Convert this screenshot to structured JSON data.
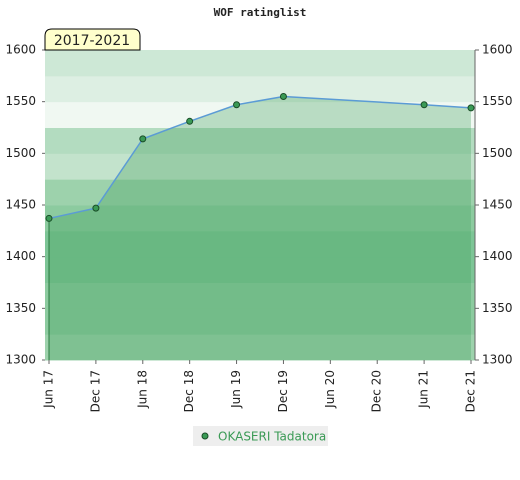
{
  "chart_data": {
    "type": "area",
    "title": "WOF ratinglist",
    "annotation": "2017-2021",
    "xlim": [
      0,
      9
    ],
    "xticks": [
      {
        "value": 0,
        "label": "Jun 17"
      },
      {
        "value": 1,
        "label": "Dec 17"
      },
      {
        "value": 2,
        "label": "Jun 18"
      },
      {
        "value": 3,
        "label": "Dec 18"
      },
      {
        "value": 4,
        "label": "Jun 19"
      },
      {
        "value": 5,
        "label": "Dec 19"
      },
      {
        "value": 6,
        "label": "Jun 20"
      },
      {
        "value": 7,
        "label": "Dec 20"
      },
      {
        "value": 8,
        "label": "Jun 21"
      },
      {
        "value": 9,
        "label": "Dec 21"
      }
    ],
    "ylim": [
      1300,
      1600
    ],
    "yticks": [
      1300,
      1350,
      1400,
      1450,
      1500,
      1550,
      1600
    ],
    "y2lim": [
      1300,
      1600
    ],
    "y2ticks": [
      1300,
      1350,
      1400,
      1450,
      1500,
      1550,
      1600
    ],
    "legend": "bottom",
    "series": [
      {
        "name": "OKASERI Tadatora",
        "color": "#3a9a55",
        "x": [
          0,
          1,
          2,
          3,
          4,
          5,
          8,
          9
        ],
        "values": [
          1437,
          1447,
          1514,
          1531,
          1547,
          1555,
          1547,
          1544
        ]
      }
    ]
  }
}
